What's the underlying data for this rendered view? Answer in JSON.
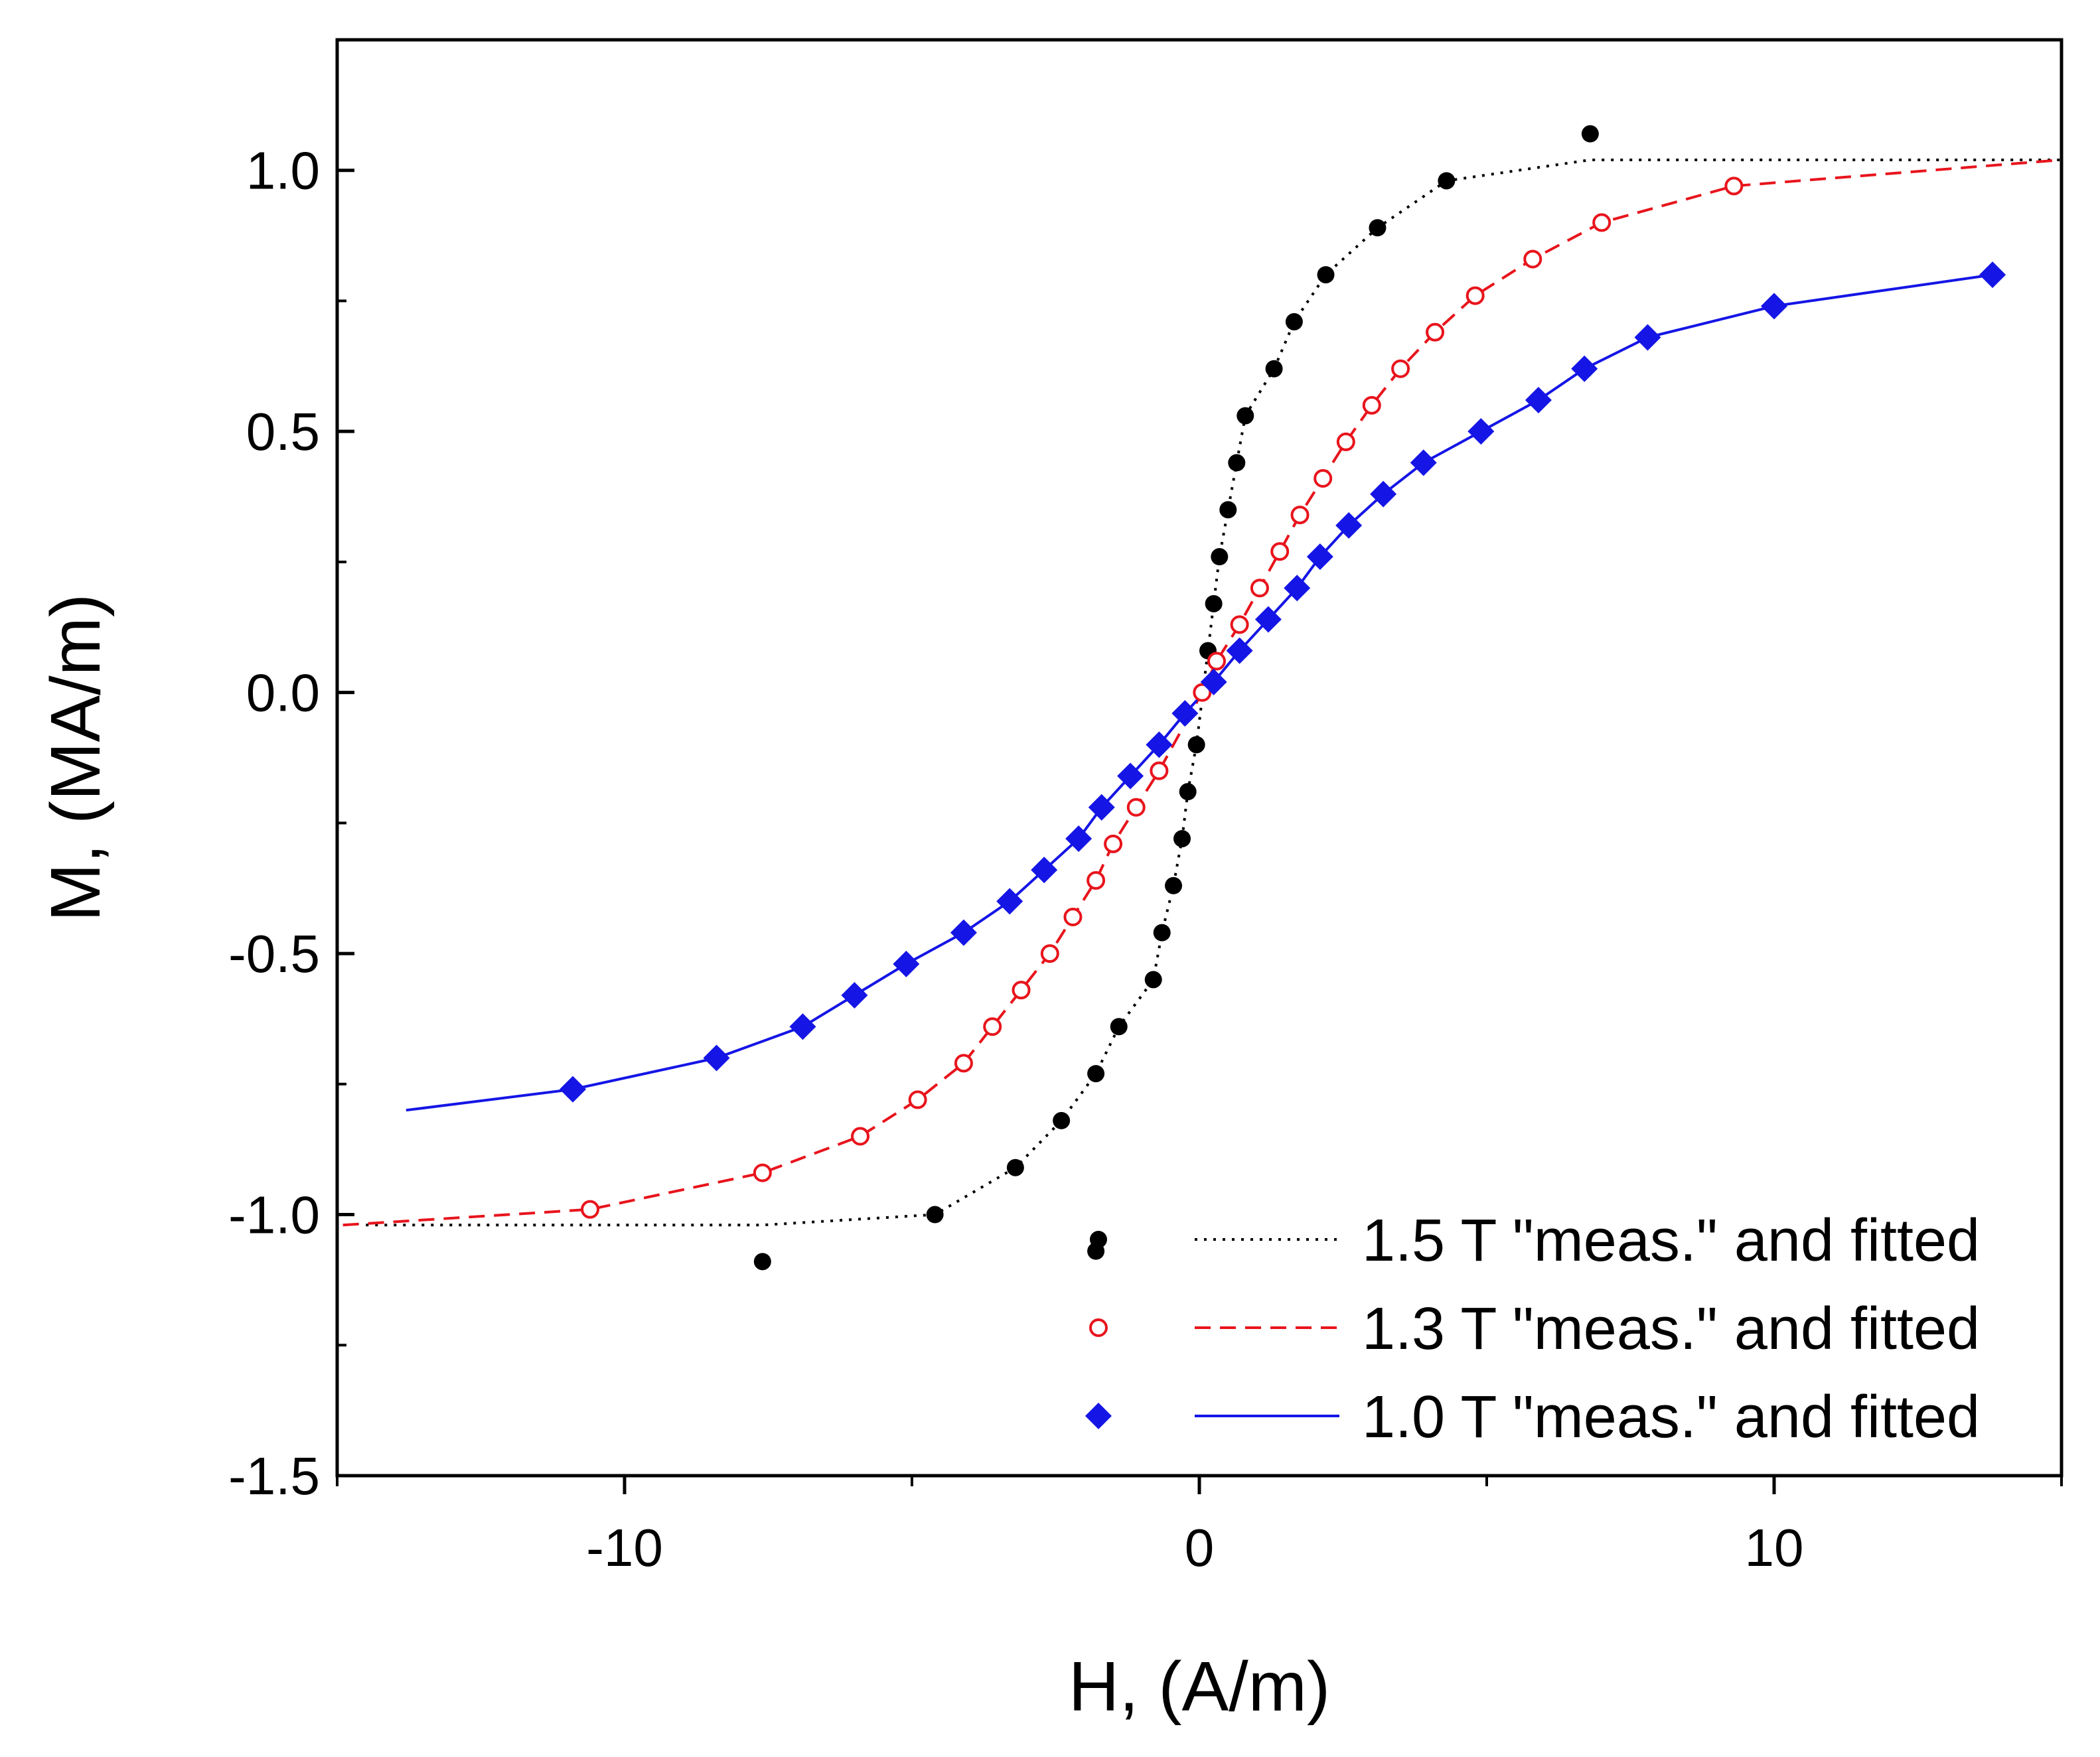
{
  "chart_data": {
    "type": "scatter",
    "title": "",
    "xlabel": "H, (A/m)",
    "ylabel": "M, (MA/m)",
    "xlim": [
      -15,
      15
    ],
    "ylim": [
      -1.5,
      1.25
    ],
    "x_ticks": [
      -10,
      0,
      10
    ],
    "x_tick_labels": [
      "-10",
      "0",
      "10"
    ],
    "y_ticks": [
      -1.5,
      -1.0,
      -0.5,
      0.0,
      0.5,
      1.0
    ],
    "y_tick_labels": [
      "-1.5",
      "-1.0",
      "-0.5",
      "0.0",
      "0.5",
      "1.0"
    ],
    "grid": false,
    "legend_position": "bottom-right",
    "series": [
      {
        "name": "1.5 T \"meas.\" and fitted",
        "color": "#000000",
        "marker": "filled-circle",
        "line_style": "dotted",
        "fit_saturation": 1.02,
        "fit_range": [
          -14.5,
          15
        ],
        "points": [
          [
            -7.6,
            -1.09
          ],
          [
            -4.6,
            -1.0
          ],
          [
            -3.2,
            -0.91
          ],
          [
            -2.4,
            -0.82
          ],
          [
            -1.8,
            -0.73
          ],
          [
            -1.4,
            -0.64
          ],
          [
            -0.8,
            -0.55
          ],
          [
            -0.65,
            -0.46
          ],
          [
            -0.45,
            -0.37
          ],
          [
            -0.3,
            -0.28
          ],
          [
            -0.2,
            -0.19
          ],
          [
            -0.05,
            -0.1
          ],
          [
            0.15,
            0.08
          ],
          [
            0.25,
            0.17
          ],
          [
            0.35,
            0.26
          ],
          [
            0.5,
            0.35
          ],
          [
            0.65,
            0.44
          ],
          [
            0.8,
            0.53
          ],
          [
            1.3,
            0.62
          ],
          [
            1.65,
            0.71
          ],
          [
            2.2,
            0.8
          ],
          [
            3.1,
            0.89
          ],
          [
            4.3,
            0.98
          ],
          [
            6.8,
            1.07
          ],
          [
            -1.8,
            -1.07
          ]
        ]
      },
      {
        "name": "1.3 T \"meas.\" and fitted",
        "color": "#e8141c",
        "marker": "open-circle",
        "line_style": "dashed",
        "fit_saturation": 1.02,
        "fit_range": [
          -14.9,
          15
        ],
        "points": [
          [
            -10.6,
            -0.99
          ],
          [
            -7.6,
            -0.92
          ],
          [
            -5.9,
            -0.85
          ],
          [
            -4.9,
            -0.78
          ],
          [
            -4.1,
            -0.71
          ],
          [
            -3.6,
            -0.64
          ],
          [
            -3.1,
            -0.57
          ],
          [
            -2.6,
            -0.5
          ],
          [
            -2.2,
            -0.43
          ],
          [
            -1.8,
            -0.36
          ],
          [
            -1.5,
            -0.29
          ],
          [
            -1.1,
            -0.22
          ],
          [
            -0.7,
            -0.15
          ],
          [
            0.05,
            0.0
          ],
          [
            0.3,
            0.06
          ],
          [
            0.7,
            0.13
          ],
          [
            1.05,
            0.2
          ],
          [
            1.4,
            0.27
          ],
          [
            1.75,
            0.34
          ],
          [
            2.15,
            0.41
          ],
          [
            2.55,
            0.48
          ],
          [
            3.0,
            0.55
          ],
          [
            3.5,
            0.62
          ],
          [
            4.1,
            0.69
          ],
          [
            4.8,
            0.76
          ],
          [
            5.8,
            0.83
          ],
          [
            7.0,
            0.9
          ],
          [
            9.3,
            0.97
          ]
        ]
      },
      {
        "name": "1.0 T \"meas.\" and fitted",
        "color": "#1515e6",
        "marker": "filled-diamond",
        "line_style": "solid",
        "fit_saturation": 0.8,
        "fit_range": [
          -13.8,
          13.8
        ],
        "points": [
          [
            -10.9,
            -0.76
          ],
          [
            -8.4,
            -0.7
          ],
          [
            -6.9,
            -0.64
          ],
          [
            -6.0,
            -0.58
          ],
          [
            -5.1,
            -0.52
          ],
          [
            -4.1,
            -0.46
          ],
          [
            -3.3,
            -0.4
          ],
          [
            -2.7,
            -0.34
          ],
          [
            -2.1,
            -0.28
          ],
          [
            -1.7,
            -0.22
          ],
          [
            -1.2,
            -0.16
          ],
          [
            -0.7,
            -0.1
          ],
          [
            -0.25,
            -0.04
          ],
          [
            0.25,
            0.02
          ],
          [
            0.7,
            0.08
          ],
          [
            1.2,
            0.14
          ],
          [
            1.7,
            0.2
          ],
          [
            2.1,
            0.26
          ],
          [
            2.6,
            0.32
          ],
          [
            3.2,
            0.38
          ],
          [
            3.9,
            0.44
          ],
          [
            4.9,
            0.5
          ],
          [
            5.9,
            0.56
          ],
          [
            6.7,
            0.62
          ],
          [
            7.8,
            0.68
          ],
          [
            10.0,
            0.74
          ],
          [
            13.8,
            0.8
          ]
        ]
      }
    ]
  }
}
